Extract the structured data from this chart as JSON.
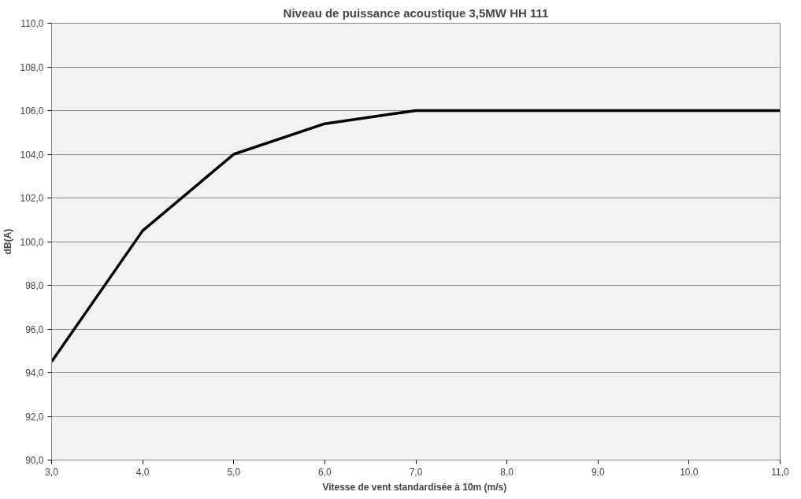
{
  "chart_data": {
    "type": "line",
    "title": "Niveau de puissance acoustique 3,5MW HH 111",
    "xlabel": "Vitesse de vent  standardisée à 10m (m/s)",
    "ylabel": "dB(A)",
    "x": [
      3,
      4,
      5,
      6,
      7,
      8,
      9,
      10,
      11
    ],
    "series": [
      {
        "color": "#000000",
        "values": [
          94.5,
          100.5,
          104.0,
          105.4,
          106.0,
          106.0,
          106.0,
          106.0,
          106.0
        ]
      }
    ],
    "xlim": [
      3,
      11
    ],
    "ylim": [
      90,
      110
    ],
    "xticks": [
      {
        "value": 3,
        "label": "3,0"
      },
      {
        "value": 4,
        "label": "4,0"
      },
      {
        "value": 5,
        "label": "5,0"
      },
      {
        "value": 6,
        "label": "6,0"
      },
      {
        "value": 7,
        "label": "7,0"
      },
      {
        "value": 8,
        "label": "8,0"
      },
      {
        "value": 9,
        "label": "9,0"
      },
      {
        "value": 10,
        "label": "10,0"
      },
      {
        "value": 11,
        "label": "11,0"
      }
    ],
    "yticks": [
      {
        "value": 90,
        "label": "90,0"
      },
      {
        "value": 92,
        "label": "92,0"
      },
      {
        "value": 94,
        "label": "94,0"
      },
      {
        "value": 96,
        "label": "96,0"
      },
      {
        "value": 98,
        "label": "98,0"
      },
      {
        "value": 100,
        "label": "100,0"
      },
      {
        "value": 102,
        "label": "102,0"
      },
      {
        "value": 104,
        "label": "104,0"
      },
      {
        "value": 106,
        "label": "106,0"
      },
      {
        "value": 108,
        "label": "108,0"
      },
      {
        "value": 110,
        "label": "110,0"
      }
    ],
    "grid": "y",
    "marker": "none",
    "line_style": "solid"
  }
}
